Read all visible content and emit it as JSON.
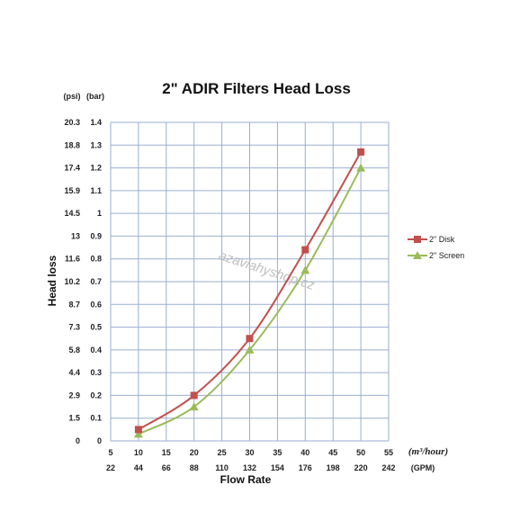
{
  "chart_data": {
    "type": "line",
    "title": "2\" ADIR Filters Head Loss",
    "xlabel": "Flow Rate",
    "ylabel": "Head loss",
    "x_unit_primary": "(m³/hour)",
    "x_unit_secondary": "(GPM)",
    "y_unit_left": "(psi)",
    "y_unit_right": "(bar)",
    "x_ticks": [
      5,
      10,
      15,
      20,
      25,
      30,
      35,
      40,
      45,
      50,
      55
    ],
    "x_ticks_gpm": [
      "22",
      "44",
      "66",
      "88",
      "110",
      "132",
      "154",
      "176",
      "198",
      "220",
      "242"
    ],
    "xlim": [
      5,
      55
    ],
    "y_ticks_bar": [
      "0",
      "0.1",
      "0.2",
      "0.3",
      "0.4",
      "0.5",
      "0.6",
      "0.7",
      "0.8",
      "0.9",
      "1",
      "1.1",
      "1.2",
      "1.3",
      "1.4"
    ],
    "y_ticks_psi": [
      "0",
      "1.5",
      "2.9",
      "4.4",
      "5.8",
      "7.3",
      "8.7",
      "10.2",
      "11.6",
      "13",
      "14.5",
      "15.9",
      "17.4",
      "18.8",
      "20.3"
    ],
    "ylim": [
      0,
      1.4
    ],
    "grid": true,
    "legend_position": "right",
    "series": [
      {
        "name": "2\" Disk",
        "color": "#c0504d",
        "marker": "square",
        "x": [
          10,
          20,
          30,
          40,
          50
        ],
        "y": [
          0.05,
          0.2,
          0.45,
          0.84,
          1.27
        ]
      },
      {
        "name": "2\" Screen",
        "color": "#9bbb59",
        "marker": "triangle",
        "x": [
          10,
          20,
          30,
          40,
          50
        ],
        "y": [
          0.03,
          0.15,
          0.4,
          0.75,
          1.2
        ]
      }
    ],
    "watermark": "azavlahyshop.cz"
  }
}
